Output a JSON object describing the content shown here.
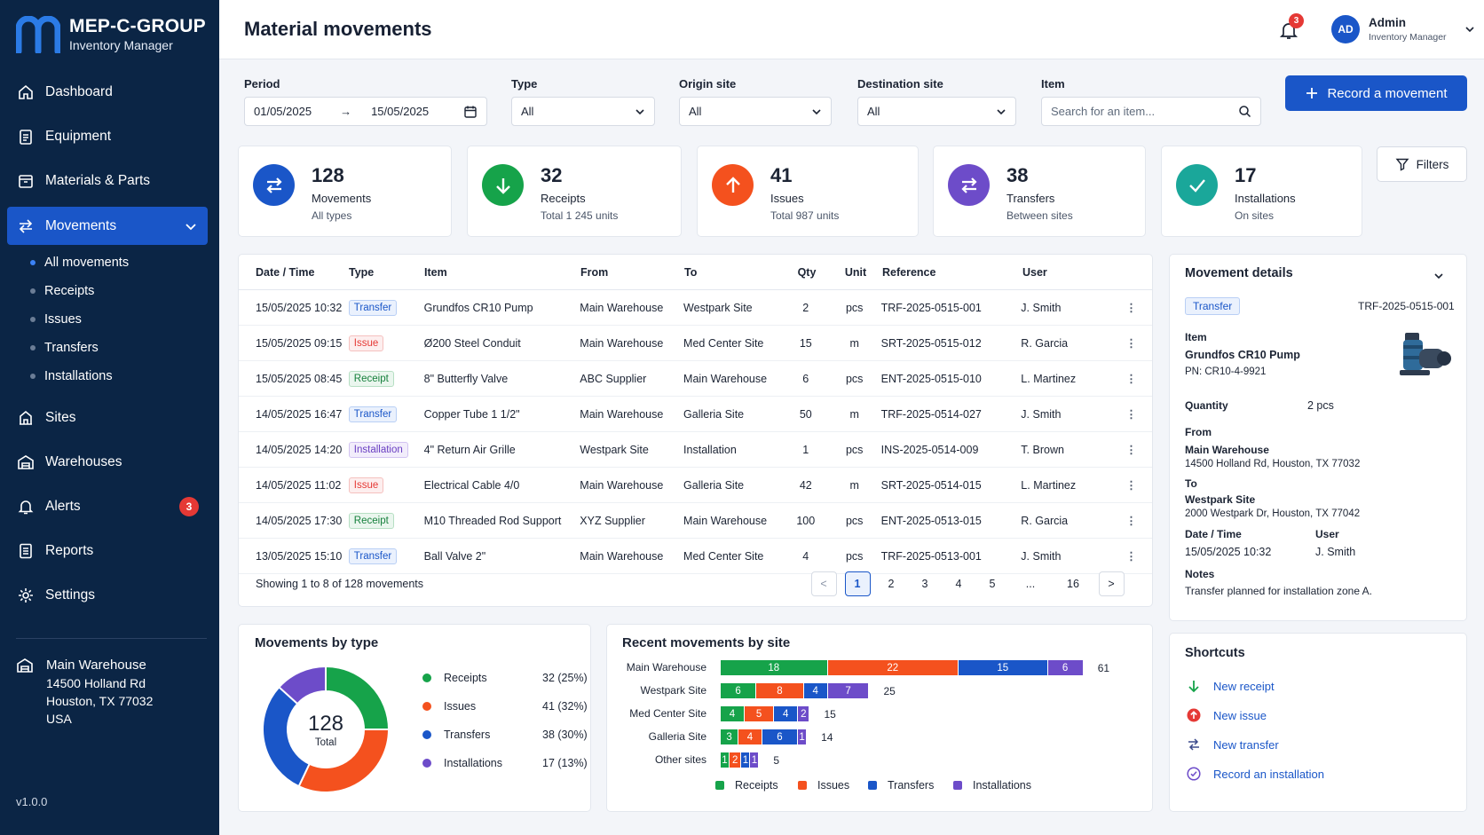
{
  "brand": {
    "name": "MEP-C-GROUP",
    "subtitle": "Inventory Manager"
  },
  "nav": {
    "dashboard": "Dashboard",
    "equipment": "Equipment",
    "materials": "Materials & Parts",
    "movements": "Movements",
    "sub": [
      "All movements",
      "Receipts",
      "Issues",
      "Transfers",
      "Installations"
    ],
    "sites": "Sites",
    "warehouses": "Warehouses",
    "alerts": "Alerts",
    "alerts_count": "3",
    "reports": "Reports",
    "settings": "Settings"
  },
  "sidebar_warehouse": {
    "name": "Main Warehouse",
    "line1": "14500 Holland Rd",
    "line2": "Houston, TX 77032",
    "line3": "USA"
  },
  "version": "v1.0.0",
  "header": {
    "title": "Material movements",
    "notif_count": "3",
    "user_initials": "AD",
    "user_name": "Admin",
    "user_role": "Inventory Manager"
  },
  "filters": {
    "period_label": "Period",
    "date_from": "01/05/2025",
    "arrow": "→",
    "date_to": "15/05/2025",
    "type_label": "Type",
    "type_value": "All",
    "origin_label": "Origin site",
    "origin_value": "All",
    "dest_label": "Destination site",
    "dest_value": "All",
    "item_label": "Item",
    "item_placeholder": "Search for an item...",
    "record_button": "Record a movement",
    "filters_button": "Filters"
  },
  "stats": [
    {
      "value": "128",
      "label": "Movements",
      "sub": "All types",
      "color": "#1a56c8"
    },
    {
      "value": "32",
      "label": "Receipts",
      "sub": "Total 1 245 units",
      "color": "#16a34a"
    },
    {
      "value": "41",
      "label": "Issues",
      "sub": "Total 987 units",
      "color": "#f4511e"
    },
    {
      "value": "38",
      "label": "Transfers",
      "sub": "Between sites",
      "color": "#6d4cc9"
    },
    {
      "value": "17",
      "label": "Installations",
      "sub": "On sites",
      "color": "#1aa79a"
    }
  ],
  "table": {
    "headers": [
      "Date / Time",
      "Type",
      "Item",
      "From",
      "To",
      "Qty",
      "Unit",
      "Reference",
      "User"
    ],
    "rows": [
      {
        "date": "15/05/2025 10:32",
        "type": "Transfer",
        "item": "Grundfos CR10 Pump",
        "from": "Main Warehouse",
        "to": "Westpark Site",
        "qty": "2",
        "unit": "pcs",
        "ref": "TRF-2025-0515-001",
        "user": "J. Smith"
      },
      {
        "date": "15/05/2025 09:15",
        "type": "Issue",
        "item": "Ø200 Steel Conduit",
        "from": "Main Warehouse",
        "to": "Med Center Site",
        "qty": "15",
        "unit": "m",
        "ref": "SRT-2025-0515-012",
        "user": "R. Garcia"
      },
      {
        "date": "15/05/2025 08:45",
        "type": "Receipt",
        "item": "8\" Butterfly Valve",
        "from": "ABC Supplier",
        "to": "Main Warehouse",
        "qty": "6",
        "unit": "pcs",
        "ref": "ENT-2025-0515-010",
        "user": "L. Martinez"
      },
      {
        "date": "14/05/2025 16:47",
        "type": "Transfer",
        "item": "Copper Tube 1 1/2\"",
        "from": "Main Warehouse",
        "to": "Galleria Site",
        "qty": "50",
        "unit": "m",
        "ref": "TRF-2025-0514-027",
        "user": "J. Smith"
      },
      {
        "date": "14/05/2025 14:20",
        "type": "Installation",
        "item": "4\" Return Air Grille",
        "from": "Westpark Site",
        "to": "Installation",
        "qty": "1",
        "unit": "pcs",
        "ref": "INS-2025-0514-009",
        "user": "T. Brown"
      },
      {
        "date": "14/05/2025 11:02",
        "type": "Issue",
        "item": "Electrical Cable 4/0",
        "from": "Main Warehouse",
        "to": "Galleria Site",
        "qty": "42",
        "unit": "m",
        "ref": "SRT-2025-0514-015",
        "user": "L. Martinez"
      },
      {
        "date": "14/05/2025 17:30",
        "type": "Receipt",
        "item": "M10 Threaded Rod Support",
        "from": "XYZ Supplier",
        "to": "Main Warehouse",
        "qty": "100",
        "unit": "pcs",
        "ref": "ENT-2025-0513-015",
        "user": "R. Garcia"
      },
      {
        "date": "13/05/2025 15:10",
        "type": "Transfer",
        "item": "Ball Valve 2\"",
        "from": "Main Warehouse",
        "to": "Med Center Site",
        "qty": "4",
        "unit": "pcs",
        "ref": "TRF-2025-0513-001",
        "user": "J. Smith"
      }
    ],
    "showing": "Showing 1 to 8 of 128 movements",
    "pages": [
      "1",
      "2",
      "3",
      "4",
      "5",
      "...",
      "16"
    ],
    "prev": "<",
    "next": ">",
    "row_menu": "⋮"
  },
  "details": {
    "title": "Movement details",
    "type": "Transfer",
    "ref": "TRF-2025-0515-001",
    "item_label": "Item",
    "item_name": "Grundfos CR10 Pump",
    "item_pn": "PN: CR10-4-9921",
    "qty_label": "Quantity",
    "qty_value": "2 pcs",
    "from_label": "From",
    "from_name": "Main Warehouse",
    "from_addr": "14500 Holland Rd, Houston, TX 77032",
    "to_label": "To",
    "to_name": "Westpark Site",
    "to_addr": "2000 Westpark Dr, Houston, TX 77042",
    "dt_label": "Date / Time",
    "dt_value": "15/05/2025 10:32",
    "user_label": "User",
    "user_value": "J. Smith",
    "notes_label": "Notes",
    "notes_value": "Transfer planned for installation zone A."
  },
  "shortcuts": {
    "title": "Shortcuts",
    "items": [
      "New receipt",
      "New issue",
      "New transfer",
      "Record an installation"
    ]
  },
  "colors": {
    "receipts": "#16a34a",
    "issues": "#f4511e",
    "transfers": "#1a56c8",
    "installations": "#6d4cc9"
  },
  "chart_data": [
    {
      "type": "pie",
      "title": "Movements by type",
      "center_value": "128",
      "center_label": "Total",
      "categories": [
        "Receipts",
        "Issues",
        "Transfers",
        "Installations"
      ],
      "values": [
        32,
        41,
        38,
        17
      ],
      "labels": [
        "32 (25%)",
        "41 (32%)",
        "38 (30%)",
        "17 (13%)"
      ]
    },
    {
      "type": "bar",
      "orientation": "horizontal",
      "stacked": true,
      "title": "Recent movements by site",
      "categories": [
        "Main Warehouse",
        "Westpark Site",
        "Med Center Site",
        "Galleria Site",
        "Other sites"
      ],
      "series": [
        {
          "name": "Receipts",
          "values": [
            18,
            6,
            4,
            3,
            1
          ]
        },
        {
          "name": "Issues",
          "values": [
            22,
            8,
            5,
            4,
            2
          ]
        },
        {
          "name": "Transfers",
          "values": [
            15,
            4,
            4,
            6,
            1
          ]
        },
        {
          "name": "Installations",
          "values": [
            6,
            7,
            2,
            1,
            1
          ]
        }
      ],
      "totals": [
        61,
        25,
        15,
        14,
        5
      ],
      "legend": "bottom"
    }
  ]
}
